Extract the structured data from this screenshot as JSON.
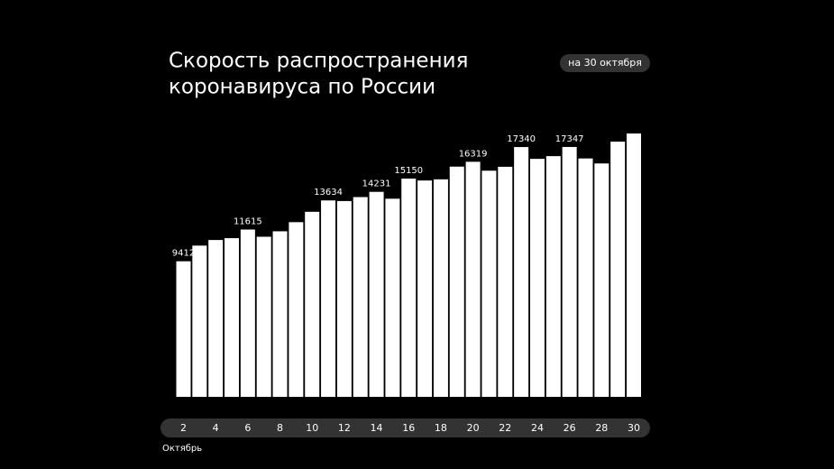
{
  "chart_data": {
    "type": "bar",
    "title_lines": [
      "Скорость распространения",
      "коронавируса по России"
    ],
    "badge": "на 30 октября",
    "x_label": "Октябрь",
    "categories": [
      2,
      null,
      4,
      null,
      6,
      null,
      8,
      null,
      10,
      null,
      12,
      null,
      14,
      null,
      16,
      null,
      18,
      null,
      20,
      null,
      22,
      null,
      24,
      null,
      26,
      null,
      28,
      null,
      30
    ],
    "values": [
      9412,
      10499,
      10888,
      11015,
      11615,
      11115,
      11493,
      12126,
      12846,
      13634,
      13592,
      13868,
      14231,
      13754,
      15150,
      15019,
      15099,
      15982,
      16319,
      15700,
      15971,
      17340,
      16521,
      16710,
      17347,
      16550,
      16202,
      17717,
      18283
    ],
    "value_labels": [
      "9412",
      null,
      null,
      null,
      "11615",
      null,
      null,
      null,
      null,
      "13634",
      null,
      null,
      "14231",
      null,
      "15150",
      null,
      null,
      null,
      "16319",
      null,
      null,
      "17340",
      null,
      null,
      "17347",
      null,
      null,
      null,
      null
    ],
    "color": "#ffffff"
  }
}
